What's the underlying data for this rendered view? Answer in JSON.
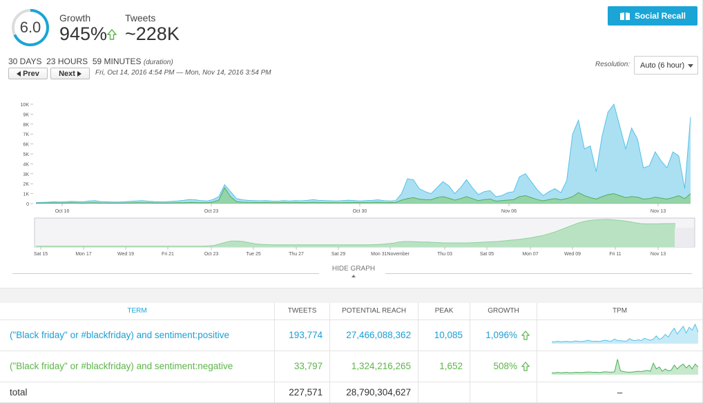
{
  "summary": {
    "score": "6.0",
    "growth_label": "Growth",
    "growth_value": "945%",
    "tweets_label": "Tweets",
    "tweets_value": "~228K"
  },
  "social_recall_label": "Social Recall",
  "duration": {
    "text": "30 DAYS  23 HOURS  59 MINUTES",
    "note": "(duration)"
  },
  "nav": {
    "prev_label": "Prev",
    "next_label": "Next"
  },
  "date_range": "Fri, Oct 14, 2016 4:54 PM — Mon, Nov 14, 2016 3:54 PM",
  "resolution": {
    "label": "Resolution:",
    "value": "Auto (6 hour)"
  },
  "hide_graph_label": "HIDE GRAPH",
  "colors": {
    "positive": "#8fd6ef",
    "positive_line": "#54c1e6",
    "negative": "#8fd19a",
    "negative_line": "#4fae5c",
    "accent": "#1aa5d6"
  },
  "chart_data": [
    {
      "type": "area",
      "y_ticks": [
        "10K",
        "9K",
        "8K",
        "7K",
        "6K",
        "5K",
        "4K",
        "3K",
        "2K",
        "1K",
        "0"
      ],
      "ylim": [
        0,
        10000
      ],
      "x_ticks": [
        "Oct 16",
        "Oct 23",
        "Oct 30",
        "Nov 06",
        "Nov 13"
      ],
      "series": [
        {
          "name": "(\"Black friday\" or #blackfriday) and sentiment:positive",
          "values": [
            100,
            120,
            140,
            180,
            160,
            180,
            220,
            200,
            180,
            260,
            300,
            200,
            180,
            150,
            160,
            180,
            220,
            260,
            300,
            240,
            200,
            180,
            180,
            220,
            260,
            320,
            420,
            380,
            300,
            260,
            400,
            700,
            1900,
            1200,
            500,
            380,
            320,
            300,
            280,
            300,
            260,
            240,
            300,
            260,
            300,
            280,
            320,
            400,
            320,
            300,
            280,
            260,
            300,
            340,
            300,
            260,
            300,
            320,
            380,
            300,
            260,
            300,
            1000,
            2500,
            2400,
            1500,
            1200,
            1000,
            1600,
            2200,
            1800,
            1000,
            1600,
            2400,
            1600,
            900,
            1200,
            1300,
            700,
            800,
            1100,
            1200,
            2700,
            3000,
            2200,
            1400,
            800,
            1200,
            1500,
            1100,
            2300,
            7000,
            8400,
            5500,
            5800,
            3200,
            6800,
            9200,
            10000,
            7800,
            5500,
            7600,
            6500,
            3600,
            3800,
            5200,
            4300,
            3600,
            5200,
            4800,
            1500,
            8700
          ]
        },
        {
          "name": "(\"Black friday\" or #blackfriday) and sentiment:negative",
          "values": [
            40,
            50,
            60,
            70,
            60,
            60,
            80,
            70,
            60,
            80,
            90,
            70,
            60,
            50,
            50,
            60,
            70,
            80,
            90,
            80,
            70,
            60,
            60,
            70,
            80,
            90,
            120,
            110,
            90,
            80,
            160,
            350,
            1600,
            700,
            200,
            140,
            120,
            110,
            100,
            110,
            100,
            90,
            110,
            100,
            110,
            100,
            110,
            130,
            110,
            100,
            100,
            90,
            100,
            120,
            110,
            100,
            110,
            120,
            140,
            110,
            100,
            110,
            350,
            500,
            600,
            450,
            400,
            380,
            600,
            700,
            550,
            350,
            500,
            700,
            500,
            300,
            400,
            450,
            250,
            300,
            350,
            400,
            700,
            800,
            600,
            400,
            280,
            400,
            500,
            380,
            500,
            700,
            1100,
            800,
            600,
            450,
            700,
            900,
            1000,
            800,
            600,
            700,
            650,
            450,
            500,
            650,
            550,
            450,
            600,
            800,
            500,
            1000
          ]
        }
      ]
    },
    {
      "type": "area",
      "x_ticks": [
        "Sat 15",
        "Mon 17",
        "Wed 19",
        "Fri 21",
        "Oct 23",
        "Tue 25",
        "Thu 27",
        "Sat 29",
        "Mon 31November",
        "Thu 03",
        "Sat 05",
        "Mon 07",
        "Wed 09",
        "Fri 11",
        "Nov 13"
      ],
      "series": [
        {
          "values": [
            3,
            3,
            3,
            3,
            3,
            3,
            3,
            3,
            3,
            3,
            3,
            3,
            3,
            3,
            3,
            3,
            3,
            3,
            3,
            3,
            3,
            3,
            3,
            3,
            3,
            3,
            3,
            3,
            3,
            3,
            4,
            6,
            12,
            18,
            22,
            22,
            20,
            16,
            12,
            10,
            9,
            8,
            8,
            8,
            8,
            8,
            8,
            8,
            8,
            8,
            8,
            8,
            8,
            8,
            8,
            8,
            8,
            8,
            8,
            9,
            10,
            12,
            14,
            18,
            20,
            20,
            19,
            18,
            18,
            17,
            16,
            15,
            15,
            15,
            15,
            15,
            16,
            17,
            18,
            19,
            20,
            22,
            24,
            26,
            28,
            31,
            34,
            38,
            42,
            48,
            54,
            62,
            70,
            78,
            86,
            92,
            96,
            98,
            99,
            100,
            99,
            97,
            95,
            92,
            88,
            85,
            84,
            84,
            84,
            85,
            85,
            85
          ]
        }
      ]
    },
    {
      "type": "line",
      "series": [
        {
          "name": "positive tpm",
          "values": [
            10,
            10,
            12,
            10,
            11,
            12,
            10,
            11,
            14,
            12,
            11,
            13,
            18,
            14,
            12,
            13,
            11,
            15,
            18,
            14,
            13,
            24,
            16,
            15,
            14,
            13,
            26,
            18,
            16,
            20,
            16,
            28,
            22,
            18,
            24,
            40,
            22,
            30,
            48,
            34,
            60,
            80,
            50,
            70,
            90,
            55,
            85,
            70,
            100,
            60
          ]
        }
      ]
    },
    {
      "type": "line",
      "series": [
        {
          "name": "negative tpm",
          "values": [
            10,
            10,
            12,
            10,
            11,
            12,
            10,
            11,
            12,
            12,
            11,
            13,
            14,
            14,
            12,
            13,
            11,
            14,
            15,
            14,
            13,
            15,
            80,
            20,
            16,
            14,
            13,
            14,
            16,
            18,
            16,
            20,
            22,
            18,
            60,
            30,
            40,
            18,
            30,
            20,
            24,
            50,
            30,
            45,
            55,
            35,
            50,
            30,
            55,
            40
          ]
        }
      ]
    }
  ],
  "table": {
    "headers": [
      "TERM",
      "TWEETS",
      "POTENTIAL REACH",
      "PEAK",
      "GROWTH",
      "TPM"
    ],
    "rows": [
      {
        "term": "(\"Black friday\" or #blackfriday) and sentiment:positive",
        "tweets": "193,774",
        "reach": "27,466,088,362",
        "peak": "10,085",
        "growth": "1,096%"
      },
      {
        "term": "(\"Black friday\" or #blackfriday) and sentiment:negative",
        "tweets": "33,797",
        "reach": "1,324,216,265",
        "peak": "1,652",
        "growth": "508%"
      }
    ],
    "total": {
      "term": "total",
      "tweets": "227,571",
      "reach": "28,790,304,627",
      "peak": "",
      "growth": "",
      "tpm": "–"
    }
  }
}
